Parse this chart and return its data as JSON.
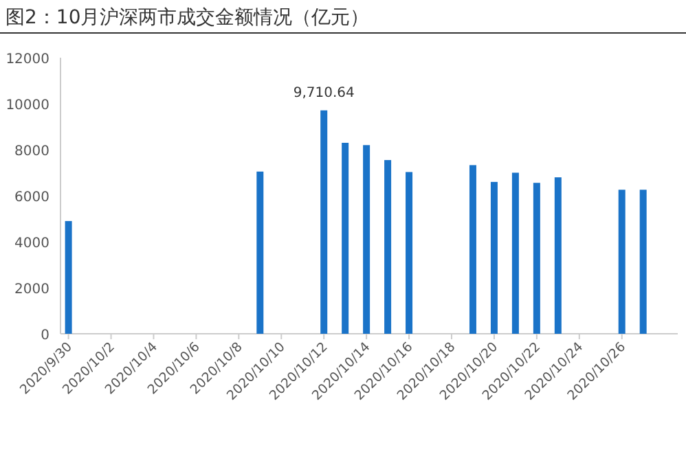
{
  "chart_data": {
    "type": "bar",
    "title": "图2：10月沪深两市成交金额情况（亿元）",
    "x": [
      "2020-09-30",
      "2020-10-09",
      "2020-10-12",
      "2020-10-13",
      "2020-10-14",
      "2020-10-15",
      "2020-10-16",
      "2020-10-19",
      "2020-10-20",
      "2020-10-21",
      "2020-10-22",
      "2020-10-23",
      "2020-10-26",
      "2020-10-27"
    ],
    "values": [
      4900,
      7050,
      9710.64,
      8300,
      8200,
      7550,
      7030,
      7330,
      6600,
      7000,
      6560,
      6800,
      6260,
      6260
    ],
    "value_labels": [
      null,
      null,
      "9,710.64",
      null,
      null,
      null,
      null,
      null,
      null,
      null,
      null,
      null,
      null,
      null
    ],
    "color": "#1a73c8",
    "xlim": [
      "2020-09-29T15:00",
      "2020-10-28T15:00"
    ],
    "xticks": [
      {
        "value": "2020-09-30",
        "label": "2020/9/30"
      },
      {
        "value": "2020-10-02",
        "label": "2020/10/2"
      },
      {
        "value": "2020-10-04",
        "label": "2020/10/4"
      },
      {
        "value": "2020-10-06",
        "label": "2020/10/6"
      },
      {
        "value": "2020-10-08",
        "label": "2020/10/8"
      },
      {
        "value": "2020-10-10",
        "label": "2020/10/10"
      },
      {
        "value": "2020-10-12",
        "label": "2020/10/12"
      },
      {
        "value": "2020-10-14",
        "label": "2020/10/14"
      },
      {
        "value": "2020-10-16",
        "label": "2020/10/16"
      },
      {
        "value": "2020-10-18",
        "label": "2020/10/18"
      },
      {
        "value": "2020-10-20",
        "label": "2020/10/20"
      },
      {
        "value": "2020-10-22",
        "label": "2020/10/22"
      },
      {
        "value": "2020-10-24",
        "label": "2020/10/24"
      },
      {
        "value": "2020-10-26",
        "label": "2020/10/26"
      }
    ],
    "ylim": [
      0,
      12000
    ],
    "yticks": [
      0,
      2000,
      4000,
      6000,
      8000,
      10000,
      12000
    ]
  }
}
